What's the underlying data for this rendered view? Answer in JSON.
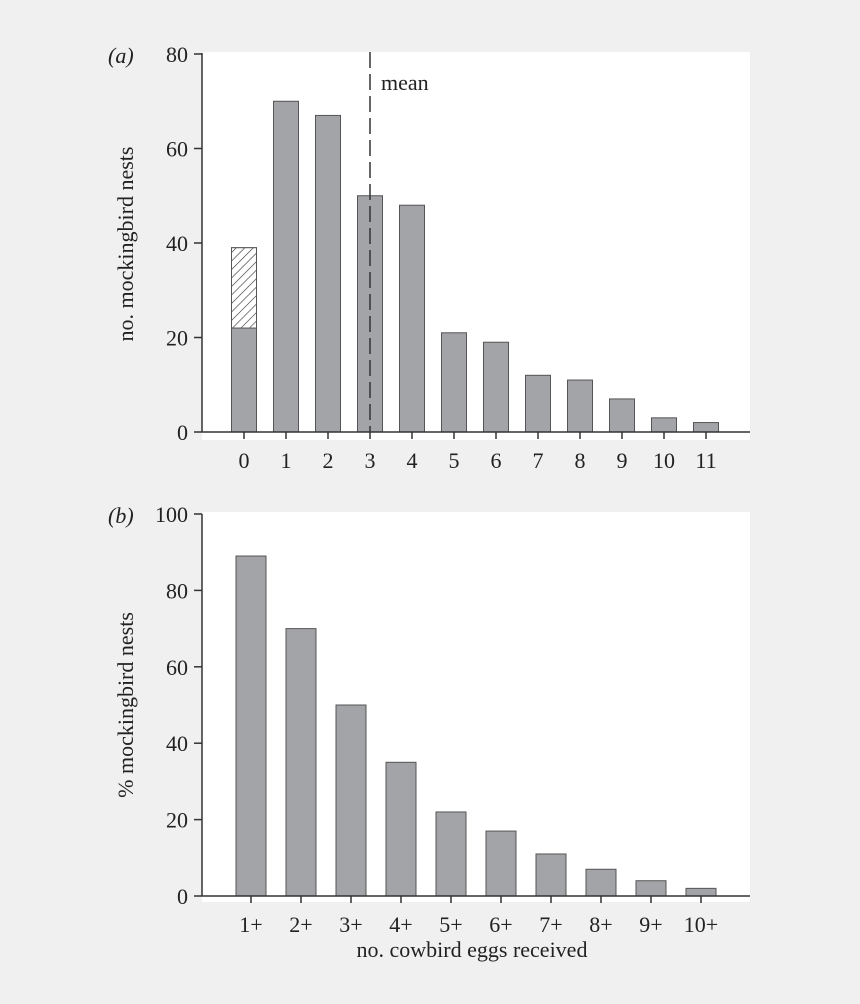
{
  "chart_data": [
    {
      "type": "bar",
      "panel_label": "(a)",
      "categories": [
        "0",
        "1",
        "2",
        "3",
        "4",
        "5",
        "6",
        "7",
        "8",
        "9",
        "10",
        "11"
      ],
      "values": [
        39,
        70,
        67,
        50,
        48,
        21,
        19,
        12,
        11,
        7,
        3,
        2
      ],
      "hatched_portion": {
        "category": "0",
        "from": 22,
        "to": 39
      },
      "ylabel": "no. mockingbird nests",
      "xlabel": "",
      "ylim": [
        0,
        80
      ],
      "yticks": [
        "0",
        "20",
        "40",
        "60",
        "80"
      ],
      "mean_line": {
        "x": 3,
        "label": "mean"
      },
      "bar_color": "#a2a4a7"
    },
    {
      "type": "bar",
      "panel_label": "(b)",
      "categories": [
        "1+",
        "2+",
        "3+",
        "4+",
        "5+",
        "6+",
        "7+",
        "8+",
        "9+",
        "10+"
      ],
      "values": [
        89,
        70,
        50,
        35,
        22,
        17,
        11,
        7,
        4,
        2
      ],
      "ylabel": "% mockingbird nests",
      "xlabel": "no. cowbird eggs received",
      "ylim": [
        0,
        100
      ],
      "yticks": [
        "0",
        "20",
        "40",
        "60",
        "80",
        "100"
      ],
      "bar_color": "#a2a4a7"
    }
  ]
}
